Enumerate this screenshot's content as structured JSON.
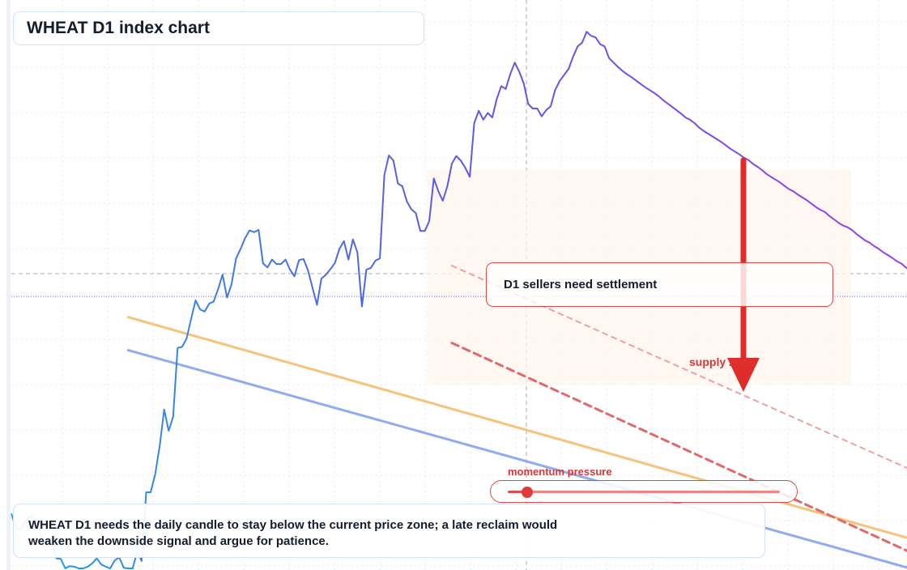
{
  "header": {
    "title": "WHEAT D1 index chart"
  },
  "callout": {
    "text": "D1 sellers need settlement"
  },
  "zone_label": "supply zone",
  "momentum": {
    "label": "momentum pressure",
    "level": 0.07
  },
  "note": {
    "text": "WHEAT D1 needs the daily candle to stay below the current price zone; a late reclaim would weaken the downside signal and argue for patience."
  },
  "colors": {
    "price_start": "#1fa0e6",
    "price_mid": "#5a5ae6",
    "price_end": "#a43ae6",
    "support_line": "#8fabf1",
    "resistance_line": "#f7c27a",
    "bearish": "#e02b2b",
    "channel": "#f0a0a0"
  },
  "chart_data": {
    "type": "line",
    "title": "WHEAT D1 index chart",
    "xlabel": "",
    "ylabel": "",
    "grid": true,
    "ylim": [
      0,
      100
    ],
    "x_range": [
      0,
      213
    ],
    "series": [
      {
        "values": [
          9.8,
          7.3,
          6.9,
          8.2,
          9.2,
          9.3,
          7.6,
          4.5,
          4.9,
          4.5,
          1.8,
          1.7,
          0.0,
          0.4,
          0.3,
          0.0,
          0.0,
          0.3,
          0.9,
          1.8,
          0.7,
          0.3,
          0.0,
          1.4,
          2.0,
          0.1,
          0.0,
          0.0,
          3.0,
          1.3,
          13.6,
          13.6,
          16.8,
          21.9,
          28.4,
          24.6,
          27.1,
          39.4,
          39.6,
          41.1,
          44.6,
          47.9,
          46.3,
          45.9,
          47.3,
          47.7,
          49.9,
          52.5,
          48.4,
          50.8,
          55.4,
          57.1,
          59.0,
          60.4,
          60.1,
          60.5,
          54.5,
          53.8,
          55.2,
          54.4,
          54.4,
          55.2,
          53.4,
          52.2,
          55.1,
          55.3,
          53.3,
          50.2,
          47.1,
          51.8,
          52.5,
          53.5,
          54.6,
          57.1,
          58.5,
          55.2,
          58.8,
          56.5,
          46.8,
          53.4,
          53.7,
          55.0,
          55.4,
          70.3,
          73.8,
          72.9,
          68.8,
          68.3,
          65.6,
          64.2,
          63.5,
          60.3,
          60.3,
          62.1,
          69.7,
          67.4,
          65.7,
          68.3,
          72.3,
          73.7,
          72.9,
          71.6,
          70.0,
          79.6,
          81.8,
          80.2,
          81.4,
          80.6,
          83.9,
          86.2,
          85.7,
          88.3,
          90.4,
          88.8,
          86.7,
          83.0,
          82.2,
          82.2,
          80.8,
          81.9,
          82.6,
          85.5,
          87.1,
          88.2,
          89.3,
          91.5,
          93.3,
          94.0,
          95.9,
          95.2,
          94.9,
          93.7,
          93.3,
          91.2,
          90.4,
          89.6,
          88.9,
          88.3,
          87.8,
          87.2,
          86.6,
          86.0,
          85.5,
          85.0,
          84.4,
          83.7,
          83.1,
          82.5,
          81.9,
          81.3,
          80.6,
          80.2,
          79.6,
          78.8,
          78.2,
          77.7,
          77.2,
          76.7,
          76.2,
          75.6,
          75.0,
          74.5,
          74.0,
          73.4,
          73.0,
          72.3,
          71.8,
          71.2,
          70.5,
          70.0,
          69.5,
          69.0,
          68.4,
          67.8,
          67.4,
          66.8,
          66.3,
          65.8,
          65.2,
          64.6,
          64.1,
          63.7,
          63.0,
          62.4,
          61.8,
          61.3,
          61.0,
          60.5,
          59.8,
          59.2,
          58.6,
          58.2,
          57.6,
          57.1,
          56.5,
          56.0,
          55.5,
          54.9,
          54.5,
          53.8,
          53.3,
          52.8,
          52.3,
          51.7,
          51.2,
          50.6,
          50.1,
          49.7,
          49.1,
          48.6
        ]
      }
    ],
    "reference_lines": [
      {
        "kind": "trendline",
        "color": "#f7c27a",
        "from": [
          26,
          44.9
        ],
        "to": [
          200,
          5.3
        ]
      },
      {
        "kind": "trendline",
        "color": "#8fabf1",
        "from": [
          26,
          39.0
        ],
        "to": [
          200,
          0.0
        ]
      },
      {
        "kind": "channel",
        "color": "#f0a0a0",
        "from": [
          98,
          54.1
        ],
        "to": [
          200,
          17.7
        ]
      },
      {
        "kind": "channel",
        "color": "#e06a6a",
        "from": [
          98,
          40.3
        ],
        "to": [
          200,
          2.9
        ]
      }
    ],
    "annotations": [
      {
        "text": "D1 sellers need settlement"
      },
      {
        "text": "supply zone"
      },
      {
        "text": "momentum pressure"
      }
    ]
  }
}
